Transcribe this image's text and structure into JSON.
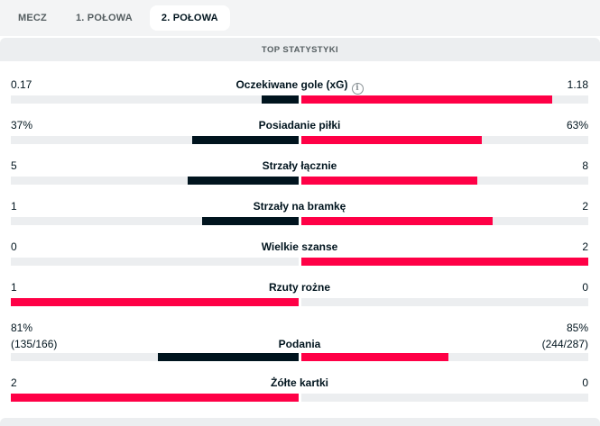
{
  "tabs": [
    {
      "label": "MECZ",
      "active": false
    },
    {
      "label": "1. POŁOWA",
      "active": false
    },
    {
      "label": "2. POŁOWA",
      "active": true
    }
  ],
  "section_title": "TOP STATYSTYKI",
  "colors": {
    "dark": "#00141e",
    "red": "#ff0046",
    "track": "#eceef0"
  },
  "stats": [
    {
      "label": "Oczekiwane gole (xG)",
      "info_icon": "info-icon",
      "home": "0.17",
      "away": "1.18",
      "home_share": 0.126,
      "away_share": 0.874,
      "home_color": "dark",
      "away_color": "red"
    },
    {
      "label": "Posiadanie piłki",
      "home": "37%",
      "away": "63%",
      "home_share": 0.37,
      "away_share": 0.63,
      "home_color": "dark",
      "away_color": "red"
    },
    {
      "label": "Strzały łącznie",
      "home": "5",
      "away": "8",
      "home_share": 0.385,
      "away_share": 0.615,
      "home_color": "dark",
      "away_color": "red"
    },
    {
      "label": "Strzały na bramkę",
      "home": "1",
      "away": "2",
      "home_share": 0.333,
      "away_share": 0.667,
      "home_color": "dark",
      "away_color": "red"
    },
    {
      "label": "Wielkie szanse",
      "home": "0",
      "away": "2",
      "home_share": 0.0,
      "away_share": 1.0,
      "home_color": "dark",
      "away_color": "red"
    },
    {
      "label": "Rzuty rożne",
      "home": "1",
      "away": "0",
      "home_share": 1.0,
      "away_share": 0.0,
      "home_color": "red",
      "away_color": "dark"
    },
    {
      "label": "Podania",
      "home": "81%",
      "away": "85%",
      "home_sub": "(135/166)",
      "away_sub": "(244/287)",
      "home_share": 0.488,
      "away_share": 0.512,
      "home_color": "dark",
      "away_color": "red"
    },
    {
      "label": "Żółte kartki",
      "home": "2",
      "away": "0",
      "home_share": 1.0,
      "away_share": 0.0,
      "home_color": "red",
      "away_color": "dark"
    }
  ]
}
